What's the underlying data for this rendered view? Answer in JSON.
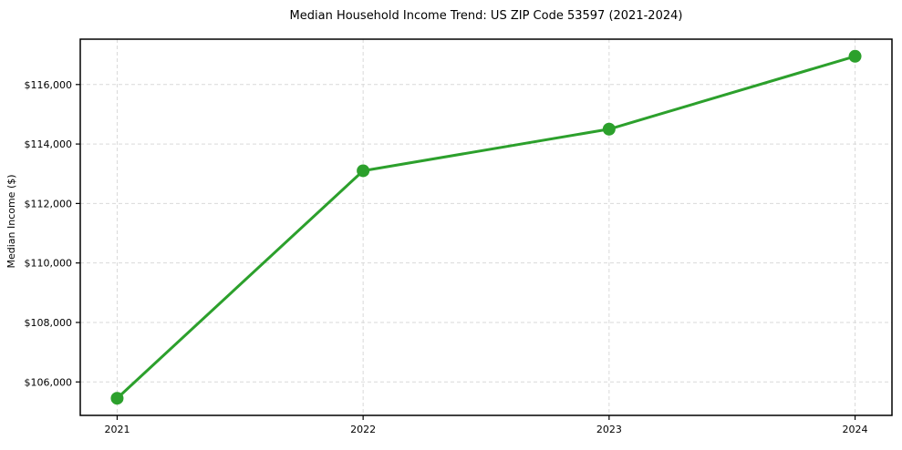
{
  "chart_data": {
    "type": "line",
    "title": "Median Household Income Trend: US ZIP Code 53597 (2021-2024)",
    "xlabel": "",
    "ylabel": "Median Income ($)",
    "x": [
      2021,
      2022,
      2023,
      2024
    ],
    "xtick_labels": [
      "2021",
      "2022",
      "2023",
      "2024"
    ],
    "yticks": [
      106000,
      108000,
      110000,
      112000,
      114000,
      116000
    ],
    "ytick_labels": [
      "$106,000",
      "$108,000",
      "$110,000",
      "$112,000",
      "$114,000",
      "$116,000"
    ],
    "series": [
      {
        "name": "Median Household Income",
        "values": [
          105450,
          113100,
          114500,
          116950
        ],
        "color": "#2ca02c",
        "marker": "circle",
        "line_width": 3,
        "marker_radius": 7
      }
    ],
    "xlim": [
      2020.85,
      2024.15
    ],
    "ylim": [
      104875,
      117525
    ],
    "grid": true,
    "grid_color": "#d9d9d9",
    "grid_dash": "4,3",
    "axis_color": "#000000",
    "background": "#ffffff",
    "legend": "none"
  }
}
